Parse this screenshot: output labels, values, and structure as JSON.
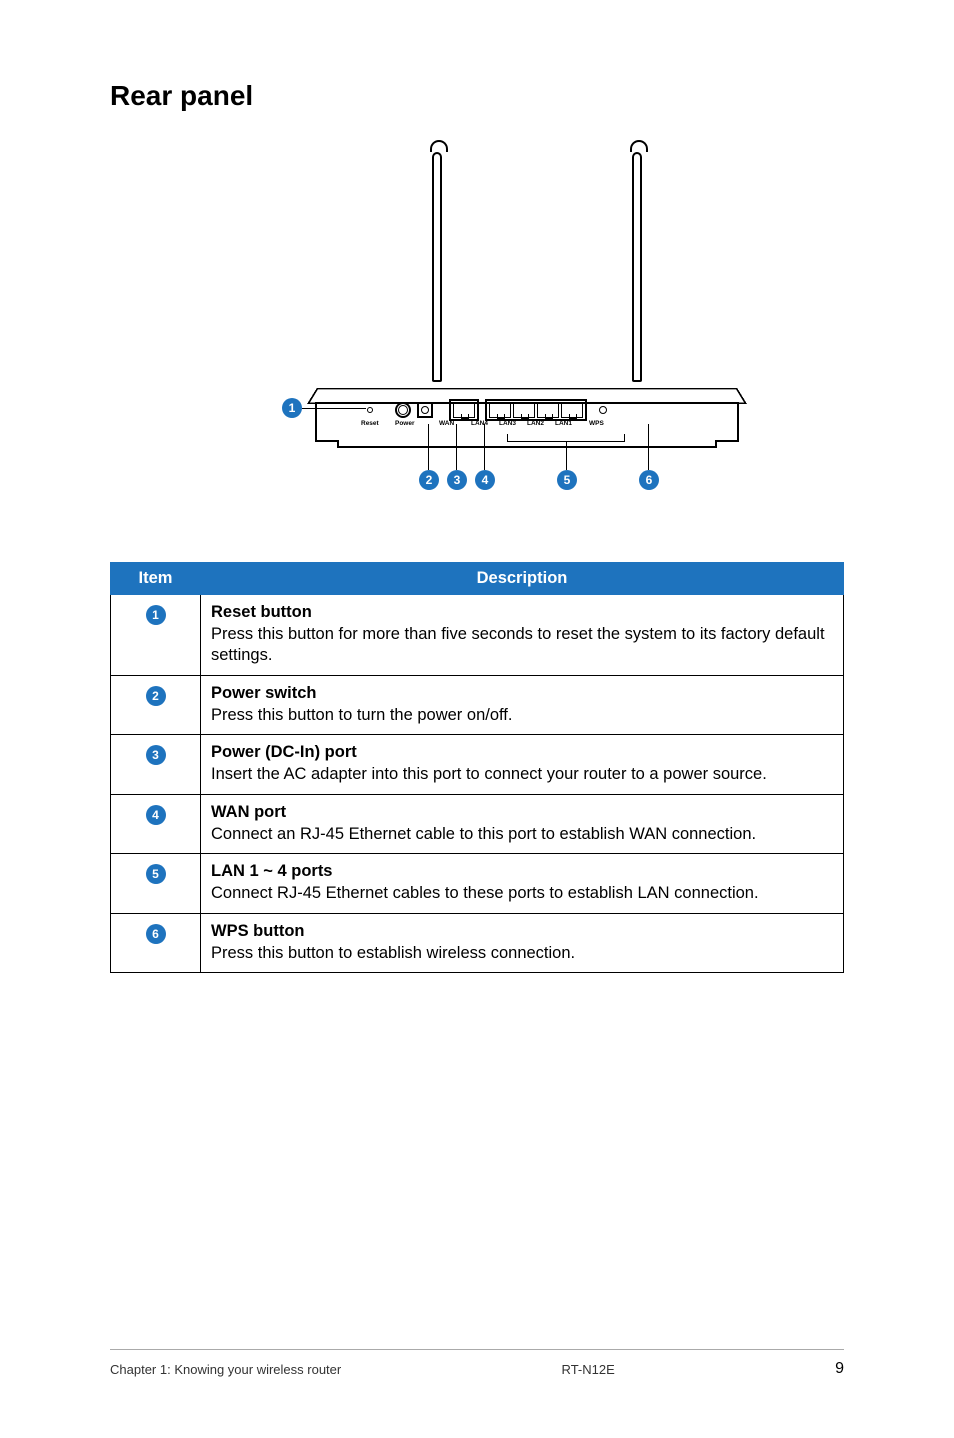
{
  "section_title": "Rear panel",
  "diagram": {
    "port_labels": {
      "reset": "Reset",
      "power": "Power",
      "wan": "WAN",
      "lan4": "LAN4",
      "lan3": "LAN3",
      "lan2": "LAN2",
      "lan1": "LAN1",
      "wps": "WPS"
    },
    "callouts": [
      "1",
      "2",
      "3",
      "4",
      "5",
      "6"
    ]
  },
  "table": {
    "headers": {
      "item": "Item",
      "description": "Description"
    },
    "rows": [
      {
        "num": "1",
        "title": "Reset button",
        "body": "Press this button for more than five seconds to reset the system to its factory default settings."
      },
      {
        "num": "2",
        "title": "Power switch",
        "body": "Press this button to turn the power on/off."
      },
      {
        "num": "3",
        "title": "Power (DC-In) port",
        "body": "Insert the AC adapter into this port to connect your router to a power source."
      },
      {
        "num": "4",
        "title": "WAN port",
        "body": "Connect an RJ-45 Ethernet cable to this port to establish WAN connection."
      },
      {
        "num": "5",
        "title": "LAN 1 ~ 4 ports",
        "body": "Connect RJ-45 Ethernet cables to these ports to establish LAN connection."
      },
      {
        "num": "6",
        "title": "WPS button",
        "body": "Press this button to establish wireless connection."
      }
    ]
  },
  "footer": {
    "left": "Chapter 1: Knowing your wireless router",
    "center": "RT-N12E",
    "page": "9"
  },
  "colors": {
    "accent": "#1e73be",
    "text": "#000000",
    "border": "#000000",
    "footer_line": "#aaaaaa"
  }
}
